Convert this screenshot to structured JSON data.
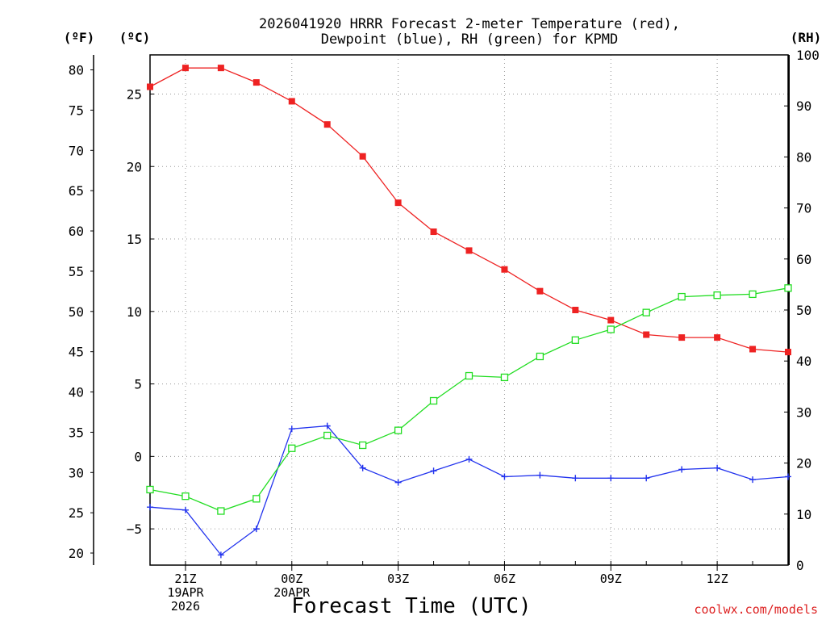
{
  "chart_data": {
    "type": "line",
    "title_line1": "2026041920 HRRR Forecast 2-meter Temperature (red),",
    "title_line2": "Dewpoint (blue), RH (green) for KPMD",
    "left_outer_unit": "(ºF)",
    "left_inner_unit": "(ºC)",
    "right_unit": "(RH)",
    "xlabel": "Forecast Time (UTC)",
    "credit": "coolwx.com/models",
    "x_hours": [
      0,
      1,
      2,
      3,
      4,
      5,
      6,
      7,
      8,
      9,
      10,
      11,
      12,
      13,
      14,
      15,
      16,
      17,
      18
    ],
    "x_ticks": [
      {
        "hour": 1,
        "lines": [
          "21Z",
          "19APR",
          "2026"
        ]
      },
      {
        "hour": 4,
        "lines": [
          "00Z",
          "20APR"
        ]
      },
      {
        "hour": 7,
        "lines": [
          "03Z"
        ]
      },
      {
        "hour": 10,
        "lines": [
          "06Z"
        ]
      },
      {
        "hour": 13,
        "lines": [
          "09Z"
        ]
      },
      {
        "hour": 16,
        "lines": [
          "12Z"
        ]
      }
    ],
    "celsius_axis": {
      "min": -7.5,
      "max": 27.7,
      "ticks": [
        25,
        20,
        15,
        10,
        5,
        0,
        -5
      ]
    },
    "fahrenheit_ticks": [
      80,
      75,
      70,
      65,
      60,
      55,
      50,
      45,
      40,
      35,
      30,
      25,
      20
    ],
    "rh_axis": {
      "min": 0,
      "max": 100,
      "ticks": [
        100,
        90,
        80,
        70,
        60,
        50,
        40,
        30,
        20,
        10,
        0
      ]
    },
    "series": [
      {
        "name": "Temperature",
        "units": "C",
        "color": "#ee2222",
        "marker": "filled-square",
        "values": [
          25.5,
          26.8,
          26.8,
          25.8,
          24.5,
          22.9,
          20.7,
          17.5,
          15.5,
          14.2,
          12.9,
          11.4,
          10.1,
          9.4,
          8.4,
          8.2,
          8.2,
          7.4,
          7.2
        ]
      },
      {
        "name": "Dewpoint",
        "units": "C",
        "color": "#2233ee",
        "marker": "plus",
        "values": [
          -3.5,
          -3.7,
          -6.8,
          -5.0,
          1.9,
          2.1,
          -0.8,
          -1.8,
          -1.0,
          -0.2,
          -1.4,
          -1.3,
          -1.5,
          -1.5,
          -1.5,
          -0.9,
          -0.8,
          -1.6,
          -1.4
        ]
      },
      {
        "name": "RH",
        "units": "%",
        "color": "#22dd22",
        "marker": "open-square",
        "values": [
          14.8,
          13.5,
          10.6,
          13.0,
          22.9,
          25.4,
          23.5,
          26.4,
          32.2,
          37.1,
          36.8,
          40.9,
          44.1,
          46.2,
          49.5,
          52.6,
          52.9,
          53.1,
          54.3
        ]
      }
    ]
  }
}
